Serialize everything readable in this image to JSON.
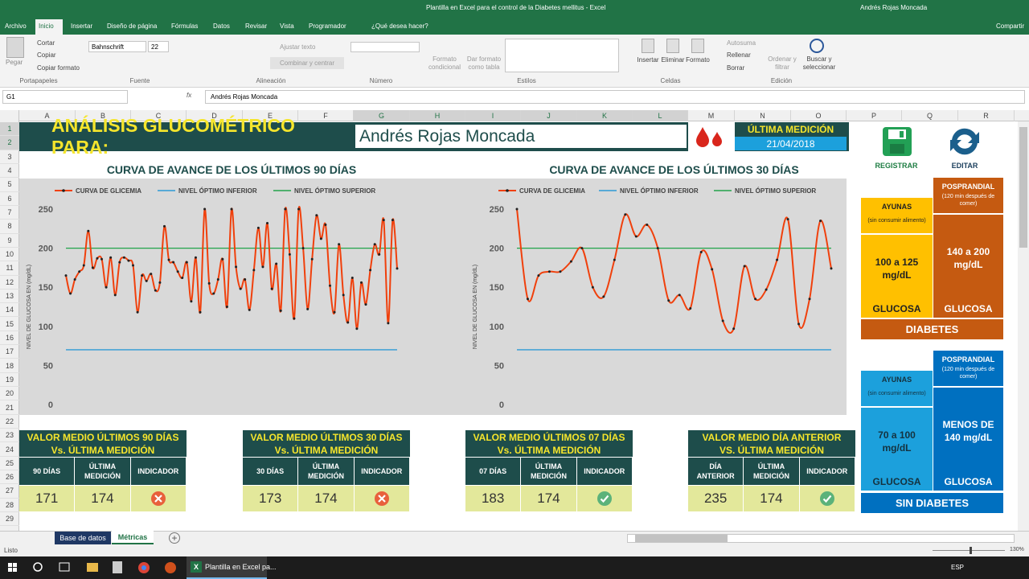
{
  "window": {
    "title": "Plantilla en Excel para el control de la Diabetes mellitus  -  Excel",
    "user": "Andrés Rojas Moncada",
    "share": "Compartir"
  },
  "ribbon": {
    "tabs": [
      "Archivo",
      "Inicio",
      "Insertar",
      "Diseño de página",
      "Fórmulas",
      "Datos",
      "Revisar",
      "Vista",
      "Programador",
      "¿Qué desea hacer?"
    ],
    "clipboard": {
      "paste": "Pegar",
      "cut": "Cortar",
      "copy": "Copiar",
      "format_painter": "Copiar formato"
    },
    "font": {
      "name": "Bahnschrift",
      "size": "22"
    },
    "alignment": {
      "wrap": "Ajustar texto",
      "merge": "Combinar y centrar"
    },
    "styles": {
      "conditional": "Formato condicional",
      "table": "Dar formato como tabla"
    },
    "cells": {
      "insert": "Insertar",
      "delete": "Eliminar",
      "format": "Formato"
    },
    "editing": {
      "autosum": "Autosuma",
      "fill": "Rellenar",
      "clear": "Borrar",
      "sort": "Ordenar y filtrar",
      "find": "Buscar y seleccionar"
    },
    "groups": [
      "Portapapeles",
      "Fuente",
      "Alineación",
      "Número",
      "Estilos",
      "Celdas",
      "Edición"
    ]
  },
  "formula_bar": {
    "name_box": "G1",
    "function": "fx",
    "content": "Andrés Rojas Moncada"
  },
  "grid": {
    "columns": [
      "A",
      "B",
      "C",
      "D",
      "E",
      "F",
      "G",
      "H",
      "I",
      "J",
      "K",
      "L",
      "M",
      "N",
      "O",
      "P",
      "Q",
      "R"
    ],
    "rows": [
      1,
      2,
      3,
      4,
      5,
      6,
      7,
      8,
      9,
      10,
      11,
      12,
      13,
      14,
      15,
      16,
      17,
      18,
      19,
      20,
      21,
      22,
      23,
      24,
      25,
      26,
      27,
      28,
      29
    ]
  },
  "header": {
    "title": "ANÁLISIS GLUCOMÉTRICO PARA:",
    "patient": "Andrés Rojas Moncada",
    "last_label": "ÚLTIMA MEDICIÓN",
    "last_date": "21/04/2018"
  },
  "charts": [
    {
      "type": "line",
      "title": "CURVA DE AVANCE DE LOS ÚLTIMOS 90 DÍAS",
      "y_label": "NIVEL DE GLUCOSA EN (mg/dL)",
      "ylim": [
        0,
        250
      ],
      "yticks": [
        0,
        50,
        100,
        150,
        200,
        250
      ],
      "series": [
        {
          "name": "CURVA DE GLICEMIA",
          "color": "#f0400c",
          "values": [
            165,
            142,
            160,
            170,
            178,
            222,
            175,
            187,
            186,
            150,
            188,
            140,
            182,
            188,
            184,
            178,
            118,
            165,
            158,
            167,
            146,
            156,
            228,
            185,
            182,
            170,
            162,
            182,
            132,
            188,
            118,
            250,
            155,
            142,
            160,
            186,
            125,
            250,
            176,
            148,
            160,
            121,
            172,
            226,
            176,
            232,
            148,
            180,
            120,
            250,
            192,
            110,
            250,
            200,
            122,
            186,
            242,
            212,
            230,
            152,
            118,
            205,
            140,
            105,
            162,
            97,
            156,
            128,
            172,
            205,
            192,
            236,
            104,
            236,
            174
          ]
        }
      ],
      "reference_lines": [
        {
          "name": "NIVEL ÓPTIMO INFERIOR",
          "color": "#2e9bd6",
          "value": 70
        },
        {
          "name": "NIVEL ÓPTIMO SUPERIOR",
          "color": "#22a34a",
          "value": 200
        }
      ]
    },
    {
      "type": "line",
      "title": "CURVA DE AVANCE DE LOS ÚLTIMOS 30 DÍAS",
      "y_label": "NIVEL DE GLUCOSA EN (mg/dL)",
      "ylim": [
        0,
        250
      ],
      "yticks": [
        0,
        50,
        100,
        150,
        200,
        250
      ],
      "series": [
        {
          "name": "CURVA DE GLICEMIA",
          "color": "#f0400c",
          "values": [
            250,
            135,
            165,
            170,
            170,
            183,
            200,
            150,
            138,
            185,
            243,
            215,
            230,
            200,
            133,
            140,
            123,
            195,
            173,
            107,
            97,
            177,
            135,
            147,
            185,
            237,
            103,
            135,
            235,
            174
          ]
        }
      ],
      "reference_lines": [
        {
          "name": "NIVEL ÓPTIMO INFERIOR",
          "color": "#2e9bd6",
          "value": 70
        },
        {
          "name": "NIVEL ÓPTIMO SUPERIOR",
          "color": "#22a34a",
          "value": 200
        }
      ]
    }
  ],
  "actions": {
    "register": "REGISTRAR",
    "edit": "EDITAR"
  },
  "panels": [
    {
      "ayunas": {
        "title": "AYUNAS",
        "note": "(sin consumir alimento)",
        "range": "100 a 125 mg/dL",
        "label": "GLUCOSA"
      },
      "posprandial": {
        "title": "POSPRANDIAL",
        "note": "(120 min después de comer)",
        "range": "140 a 200 mg/dL",
        "label": "GLUCOSA"
      },
      "footer": "DIABETES"
    },
    {
      "ayunas": {
        "title": "AYUNAS",
        "note": "(sin consumir alimento)",
        "range": "70 a 100 mg/dL",
        "label": "GLUCOSA"
      },
      "posprandial": {
        "title": "POSPRANDIAL",
        "note": "(120 min después de comer)",
        "range": "MENOS DE 140 mg/dL",
        "label": "GLUCOSA"
      },
      "footer": "SIN DIABETES"
    }
  ],
  "summaries": [
    {
      "title": [
        "VALOR MEDIO ÚLTIMOS 90 DÍAS",
        "Vs. ÚLTIMA MEDICIÓN"
      ],
      "headers": [
        "90 DÍAS",
        "ÚLTIMA MEDICIÓN",
        "INDICADOR"
      ],
      "values": [
        171,
        174
      ]
    },
    {
      "title": [
        "VALOR MEDIO ÚLTIMOS 30 DÍAS",
        "Vs. ÚLTIMA MEDICIÓN"
      ],
      "headers": [
        "30 DÍAS",
        "ÚLTIMA MEDICIÓN",
        "INDICADOR"
      ],
      "values": [
        173,
        174
      ]
    },
    {
      "title": [
        "VALOR MEDIO ÚLTIMOS 07 DÍAS",
        "Vs. ÚLTIMA MEDICIÓN"
      ],
      "headers": [
        "07 DÍAS",
        "ÚLTIMA MEDICIÓN",
        "INDICADOR"
      ],
      "values": [
        183,
        174
      ]
    },
    {
      "title": [
        "VALOR MEDIO DÍA ANTERIOR",
        "VS. ÚLTIMA MEDICIÓN"
      ],
      "headers": [
        "DÍA ANTERIOR",
        "ÚLTIMA MEDICIÓN",
        "INDICADOR"
      ],
      "values": [
        235,
        174
      ]
    }
  ],
  "sheets": [
    "Base de datos",
    "Métricas"
  ],
  "status": {
    "ready": "Listo",
    "zoom": "130%"
  },
  "taskbar": {
    "window": "Plantilla en Excel pa...",
    "language": "ESP"
  }
}
